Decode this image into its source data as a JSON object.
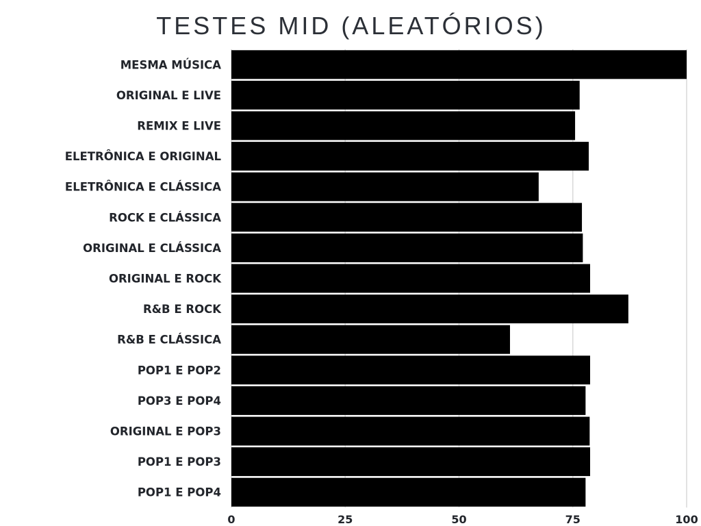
{
  "chart_data": {
    "type": "bar",
    "orientation": "horizontal",
    "title": "TESTES MID (ALEATÓRIOS)",
    "xlabel": "",
    "ylabel": "",
    "categories": [
      "MESMA MÚSICA",
      "ORIGINAL E LIVE",
      "REMIX E LIVE",
      "ELETRÔNICA E ORIGINAL",
      "ELETRÔNICA E CLÁSSICA",
      "ROCK E CLÁSSICA",
      "ORIGINAL E CLÁSSICA",
      "ORIGINAL E ROCK",
      "R&B E ROCK",
      "R&B E CLÁSSICA",
      "POP1 E POP2",
      "POP3 E POP4",
      "ORIGINAL E POP3",
      "POP1 E POP3",
      "POP1 E POP4"
    ],
    "values": [
      100,
      76.5,
      75.5,
      78.5,
      67.5,
      77,
      77.2,
      78.8,
      87.2,
      61.2,
      78.8,
      77.8,
      78.7,
      78.8,
      77.8
    ],
    "xlim": [
      0,
      100
    ],
    "xticks": [
      "0",
      "25",
      "50",
      "75",
      "100"
    ],
    "grid": true,
    "legend": "none",
    "colors": {
      "bar": "#000000",
      "grid": "#d9d9d9",
      "text": "#22252b"
    }
  }
}
